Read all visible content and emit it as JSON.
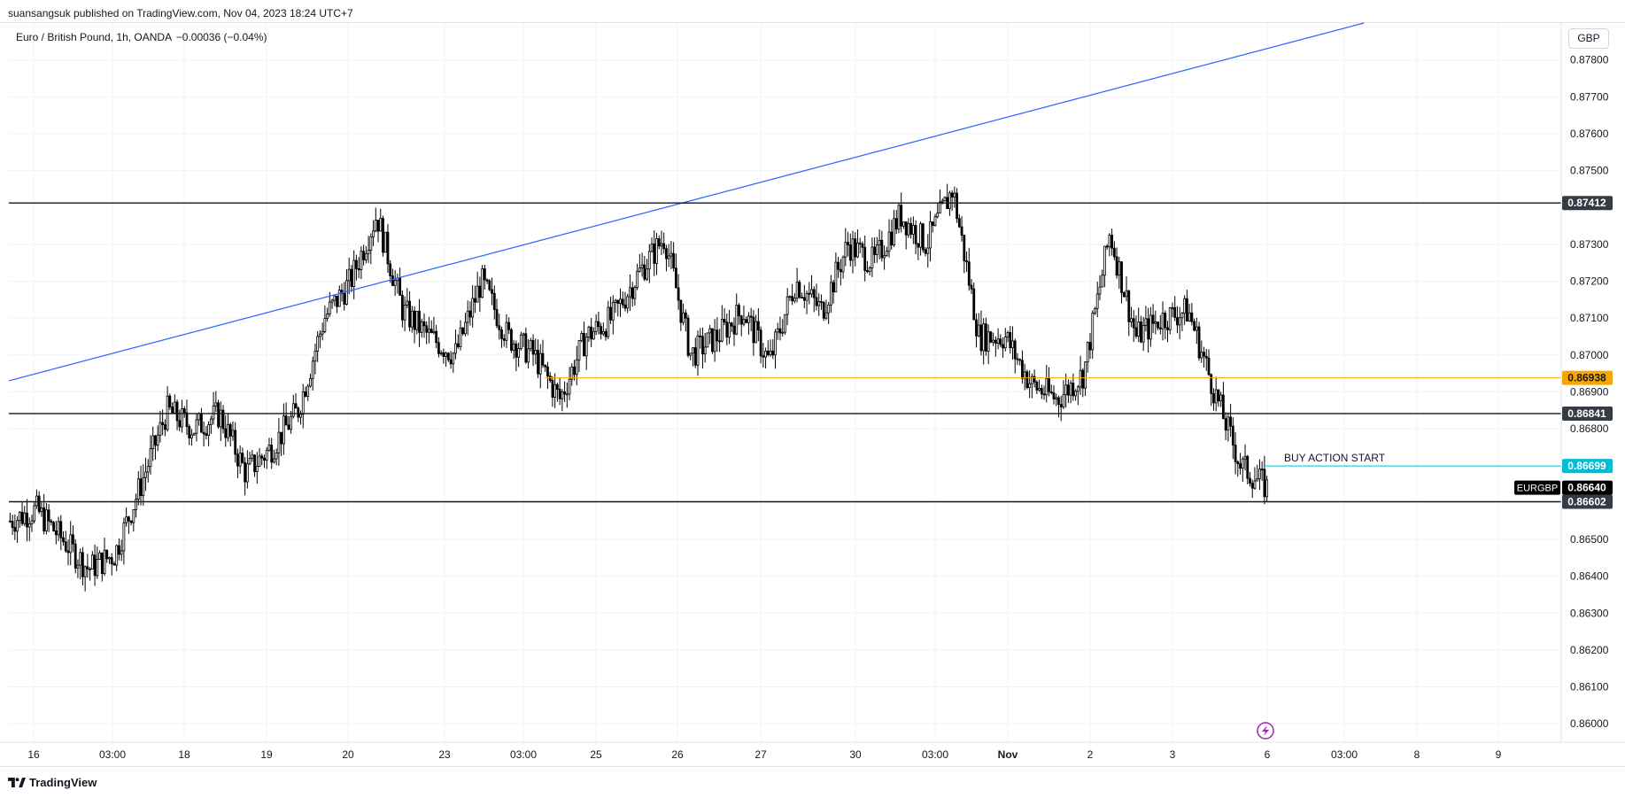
{
  "header": {
    "publish_line": "suansangsuk published on TradingView.com, Nov 04, 2023 18:24 UTC+7"
  },
  "legend": {
    "symbol_line": "Euro / British Pound, 1h, OANDA",
    "change": "−0.00036 (−0.04%)"
  },
  "currency_label": "GBP",
  "footer": {
    "logo_text": "TradingView"
  },
  "colors": {
    "candle": "#000000",
    "trendline": "#2962ff",
    "support_resistance": "#131722",
    "orange_level": "#f7a600",
    "cyan_level": "#00bcd4",
    "grid": "#f0f3fa",
    "axis_text": "#131722"
  },
  "chart_data": {
    "type": "candlestick",
    "symbol": "EURGBP",
    "timeframe": "1h",
    "ylim": [
      0.8595,
      0.879
    ],
    "y_ticks": [
      "0.87800",
      "0.87700",
      "0.87600",
      "0.87500",
      "0.87300",
      "0.87200",
      "0.87100",
      "0.87000",
      "0.86900",
      "0.86800",
      "0.86500",
      "0.86400",
      "0.86300",
      "0.86200",
      "0.86100",
      "0.86000"
    ],
    "x_ticks": [
      "16",
      "03:00",
      "18",
      "19",
      "20",
      "23",
      "03:00",
      "25",
      "26",
      "27",
      "30",
      "03:00",
      "Nov",
      "2",
      "3",
      "6",
      "03:00",
      "8",
      "9"
    ],
    "series_close_path": [
      0.8655,
      0.8658,
      0.865,
      0.8642,
      0.8646,
      0.8665,
      0.8685,
      0.868,
      0.8684,
      0.8668,
      0.8675,
      0.8685,
      0.871,
      0.872,
      0.8738,
      0.8712,
      0.8705,
      0.87,
      0.872,
      0.8705,
      0.87,
      0.8688,
      0.8705,
      0.871,
      0.8722,
      0.8732,
      0.87,
      0.8705,
      0.8712,
      0.8698,
      0.872,
      0.8712,
      0.873,
      0.8725,
      0.8738,
      0.873,
      0.8745,
      0.8705,
      0.8705,
      0.8692,
      0.8688,
      0.8695,
      0.8733,
      0.8705,
      0.871,
      0.8712,
      0.869,
      0.867,
      0.8664
    ],
    "levels": [
      {
        "price": 0.87412,
        "label": "0.87412",
        "style": "dark"
      },
      {
        "price": 0.86938,
        "label": "0.86938",
        "style": "orange"
      },
      {
        "price": 0.86841,
        "label": "0.86841",
        "style": "dark"
      },
      {
        "price": 0.86699,
        "label": "0.86699",
        "style": "cyan"
      },
      {
        "price": 0.8664,
        "label": "0.86640",
        "style": "last",
        "tag": "EURGBP"
      },
      {
        "price": 0.86602,
        "label": "0.86602",
        "style": "dark"
      }
    ],
    "annotations": [
      {
        "text": "BUY ACTION START",
        "price": 0.86699
      }
    ],
    "trendline": {
      "from_price": 0.8693,
      "to_price": 0.879
    }
  }
}
